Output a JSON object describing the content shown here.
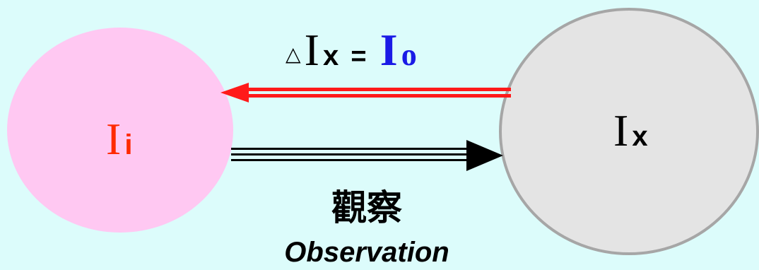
{
  "equation": {
    "delta_symbol": "△",
    "lhs_I": "I",
    "lhs_sub": "x",
    "equals": "=",
    "rhs_I": "I",
    "rhs_sub": "o"
  },
  "left_node": {
    "I": "I",
    "sub": "i"
  },
  "right_node": {
    "I": "I",
    "sub": "x"
  },
  "caption": {
    "chinese": "觀察",
    "english": "Observation"
  },
  "colors": {
    "background": "#dcfcfb",
    "left_circle": "#ffc8f2",
    "right_circle": "#e4e4e4",
    "right_circle_stroke": "#a6a6a6",
    "red_arrow": "#ff1a1a",
    "black_arrow": "#000000",
    "blue_text": "#1a1ae6",
    "red_text": "#ff2a00"
  }
}
